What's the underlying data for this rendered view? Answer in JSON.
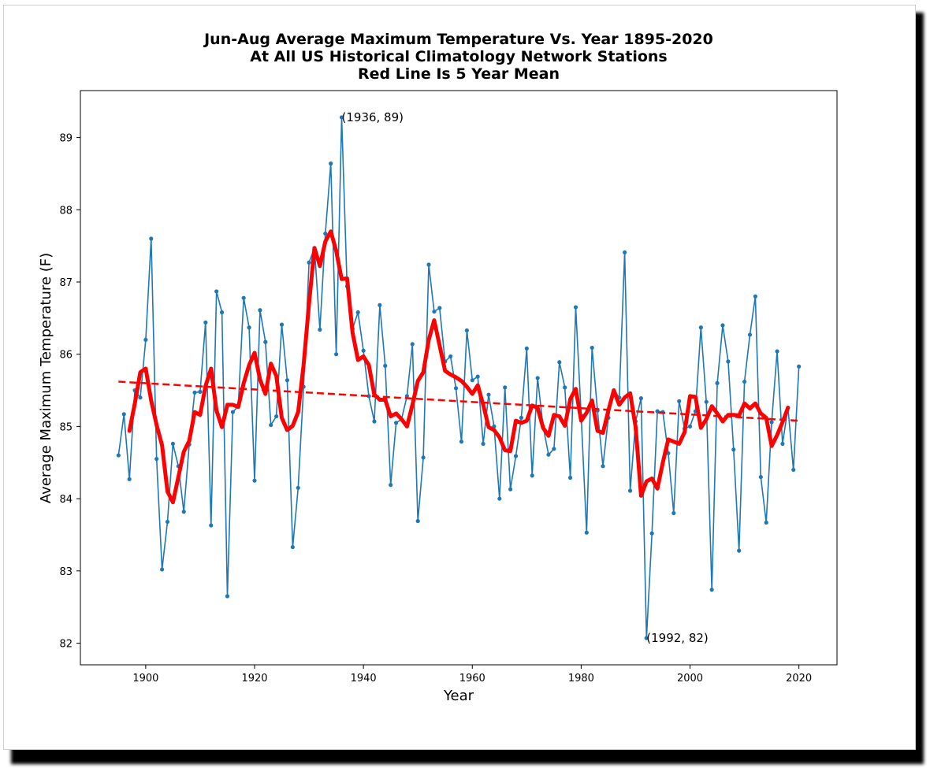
{
  "chart_data": {
    "type": "line",
    "title_lines": [
      "Jun-Aug Average Maximum Temperature Vs. Year 1895-2020",
      "At All US Historical Climatology Network Stations",
      "Red Line Is 5 Year Mean"
    ],
    "xlabel": "Year",
    "ylabel": "Average Maximum Temperature (F)",
    "xlim": [
      1888,
      2027
    ],
    "ylim": [
      81.7,
      89.65
    ],
    "x_ticks": [
      1900,
      1920,
      1940,
      1960,
      1980,
      2000,
      2020
    ],
    "y_ticks": [
      82,
      83,
      84,
      85,
      86,
      87,
      88,
      89
    ],
    "grid": false,
    "colors": {
      "annual": "#1f77b4",
      "mean": "#ff0000",
      "trend": "#ff0000"
    },
    "annual": {
      "x": [
        1895,
        1896,
        1897,
        1898,
        1899,
        1900,
        1901,
        1902,
        1903,
        1904,
        1905,
        1906,
        1907,
        1908,
        1909,
        1910,
        1911,
        1912,
        1913,
        1914,
        1915,
        1916,
        1917,
        1918,
        1919,
        1920,
        1921,
        1922,
        1923,
        1924,
        1925,
        1926,
        1927,
        1928,
        1929,
        1930,
        1931,
        1932,
        1933,
        1934,
        1935,
        1936,
        1937,
        1938,
        1939,
        1940,
        1941,
        1942,
        1943,
        1944,
        1945,
        1946,
        1947,
        1948,
        1949,
        1950,
        1951,
        1952,
        1953,
        1954,
        1955,
        1956,
        1957,
        1958,
        1959,
        1960,
        1961,
        1962,
        1963,
        1964,
        1965,
        1966,
        1967,
        1968,
        1969,
        1970,
        1971,
        1972,
        1973,
        1974,
        1975,
        1976,
        1977,
        1978,
        1979,
        1980,
        1981,
        1982,
        1983,
        1984,
        1985,
        1986,
        1987,
        1988,
        1989,
        1990,
        1991,
        1992,
        1993,
        1994,
        1995,
        1996,
        1997,
        1998,
        1999,
        2000,
        2001,
        2002,
        2003,
        2004,
        2005,
        2006,
        2007,
        2008,
        2009,
        2010,
        2011,
        2012,
        2013,
        2014,
        2015,
        2016,
        2017,
        2018,
        2019,
        2020
      ],
      "y": [
        84.6,
        85.17,
        84.27,
        85.5,
        85.4,
        86.2,
        87.6,
        84.55,
        83.02,
        83.68,
        84.76,
        84.45,
        83.82,
        84.75,
        85.47,
        85.48,
        86.44,
        83.63,
        86.87,
        86.58,
        82.65,
        85.2,
        85.28,
        86.78,
        86.37,
        84.25,
        86.61,
        86.17,
        85.02,
        85.14,
        86.41,
        85.64,
        83.33,
        84.15,
        85.55,
        87.27,
        87.47,
        86.34,
        87.67,
        88.64,
        86.0,
        89.28,
        86.94,
        86.35,
        86.58,
        86.05,
        85.42,
        85.07,
        86.68,
        85.84,
        84.19,
        85.05,
        85.1,
        85.42,
        86.14,
        83.69,
        84.57,
        87.24,
        86.59,
        86.64,
        85.9,
        85.97,
        85.53,
        84.79,
        86.33,
        85.64,
        85.69,
        84.76,
        85.44,
        85.0,
        84.0,
        85.54,
        84.13,
        84.59,
        85.12,
        86.08,
        84.32,
        85.67,
        85.0,
        84.61,
        84.69,
        85.89,
        85.54,
        84.29,
        86.65,
        85.15,
        83.53,
        86.09,
        85.22,
        84.45,
        85.12,
        85.5,
        85.4,
        87.41,
        84.11,
        85.07,
        85.39,
        82.07,
        83.52,
        85.21,
        85.2,
        84.63,
        83.8,
        85.35,
        84.97,
        85.0,
        85.21,
        86.37,
        85.34,
        82.74,
        85.6,
        86.4,
        85.9,
        84.68,
        83.28,
        85.62,
        86.27,
        86.8,
        84.3,
        83.67,
        85.06,
        86.04,
        84.76,
        85.26,
        84.4,
        85.83
      ]
    },
    "five_year_mean": {
      "x": [
        1897,
        1898,
        1899,
        1900,
        1901,
        1902,
        1903,
        1904,
        1905,
        1906,
        1907,
        1908,
        1909,
        1910,
        1911,
        1912,
        1913,
        1914,
        1915,
        1916,
        1917,
        1918,
        1919,
        1920,
        1921,
        1922,
        1923,
        1924,
        1925,
        1926,
        1927,
        1928,
        1929,
        1930,
        1931,
        1932,
        1933,
        1934,
        1935,
        1936,
        1937,
        1938,
        1939,
        1940,
        1941,
        1942,
        1943,
        1944,
        1945,
        1946,
        1947,
        1948,
        1949,
        1950,
        1951,
        1952,
        1953,
        1954,
        1955,
        1956,
        1957,
        1958,
        1959,
        1960,
        1961,
        1962,
        1963,
        1964,
        1965,
        1966,
        1967,
        1968,
        1969,
        1970,
        1971,
        1972,
        1973,
        1974,
        1975,
        1976,
        1977,
        1978,
        1979,
        1980,
        1981,
        1982,
        1983,
        1984,
        1985,
        1986,
        1987,
        1988,
        1989,
        1990,
        1991,
        1992,
        1993,
        1994,
        1995,
        1996,
        1997,
        1998,
        1999,
        2000,
        2001,
        2002,
        2003,
        2004,
        2005,
        2006,
        2007,
        2008,
        2009,
        2010,
        2011,
        2012,
        2013,
        2014,
        2015,
        2016,
        2017,
        2018
      ],
      "y": [
        84.94,
        85.32,
        85.75,
        85.8,
        85.36,
        85.02,
        84.74,
        84.1,
        83.95,
        84.3,
        84.65,
        84.8,
        85.2,
        85.16,
        85.56,
        85.8,
        85.22,
        84.99,
        85.3,
        85.3,
        85.27,
        85.6,
        85.85,
        86.02,
        85.65,
        85.45,
        85.87,
        85.7,
        85.12,
        84.95,
        85.01,
        85.2,
        85.85,
        86.7,
        87.47,
        87.22,
        87.56,
        87.7,
        87.43,
        87.04,
        87.05,
        86.3,
        85.92,
        85.97,
        85.85,
        85.44,
        85.37,
        85.37,
        85.14,
        85.18,
        85.1,
        85.0,
        85.3,
        85.63,
        85.75,
        86.2,
        86.47,
        86.12,
        85.77,
        85.72,
        85.68,
        85.63,
        85.55,
        85.45,
        85.57,
        85.3,
        84.99,
        84.95,
        84.85,
        84.67,
        84.66,
        85.08,
        85.05,
        85.08,
        85.29,
        85.26,
        84.98,
        84.87,
        85.16,
        85.14,
        85.01,
        85.38,
        85.52,
        85.08,
        85.19,
        85.36,
        84.94,
        84.91,
        85.22,
        85.5,
        85.3,
        85.4,
        85.46,
        84.99,
        84.04,
        84.24,
        84.28,
        84.14,
        84.5,
        84.82,
        84.79,
        84.76,
        84.92,
        85.42,
        85.41,
        84.98,
        85.1,
        85.28,
        85.18,
        85.07,
        85.16,
        85.16,
        85.15,
        85.32,
        85.25,
        85.32,
        85.18,
        85.12,
        84.73,
        84.88,
        85.06,
        85.26
      ]
    },
    "trend": {
      "x": [
        1895,
        2020
      ],
      "y": [
        85.62,
        85.08
      ]
    },
    "annotations": [
      {
        "text": "(1936, 89)",
        "x": 1936,
        "y": 89.28,
        "dx_years": 0.0,
        "dy_f": 0.0
      },
      {
        "text": "(1992, 82)",
        "x": 1992,
        "y": 82.07,
        "dx_years": 0.0,
        "dy_f": 0.0
      }
    ]
  }
}
